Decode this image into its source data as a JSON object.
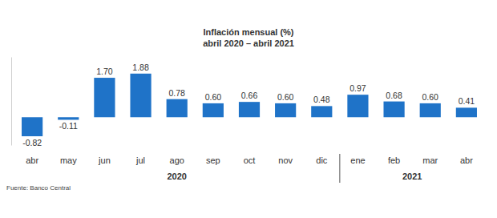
{
  "chart_data": {
    "type": "bar",
    "title": "Inflación mensual (%)",
    "subtitle": "abril 2020 – abril 2021",
    "categories": [
      "abr",
      "may",
      "jun",
      "jul",
      "ago",
      "sep",
      "oct",
      "nov",
      "dic",
      "ene",
      "feb",
      "mar",
      "abr"
    ],
    "values": [
      -0.82,
      -0.11,
      1.7,
      1.88,
      0.78,
      0.6,
      0.66,
      0.6,
      0.48,
      0.97,
      0.68,
      0.6,
      0.41
    ],
    "value_labels": [
      "-0.82",
      "-0.11",
      "1.70",
      "1.88",
      "0.78",
      "0.60",
      "0.66",
      "0.60",
      "0.48",
      "0.97",
      "0.68",
      "0.60",
      "0.41"
    ],
    "color": "#1f73c8",
    "ylim": [
      -1.2,
      2.6
    ],
    "data_labels": true,
    "tick_labels": "x",
    "grid": false,
    "annotations": [
      "2020",
      "2021"
    ],
    "source": "Fuente: Banco Central"
  }
}
